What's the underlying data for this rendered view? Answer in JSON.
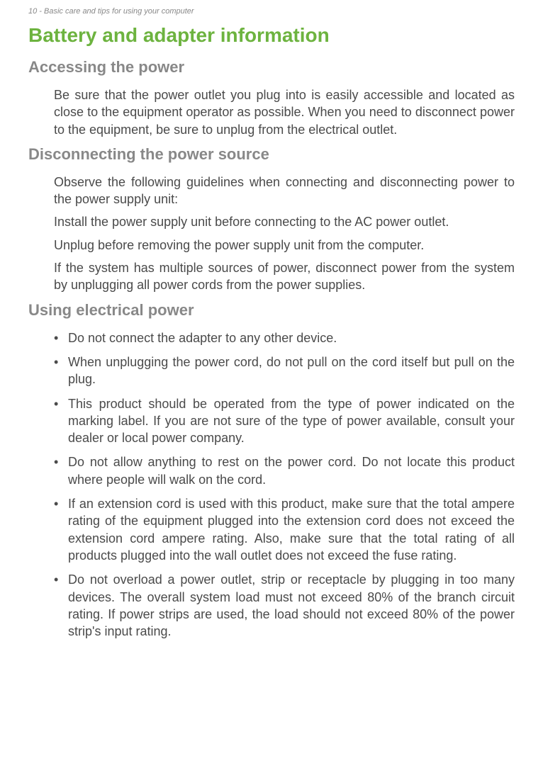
{
  "header": {
    "page_number": "10",
    "section_name": "Basic care and tips for using your computer"
  },
  "main_title": "Battery and adapter information",
  "sections": [
    {
      "title": "Accessing the power",
      "paragraphs": [
        "Be sure that the power outlet you plug into is easily accessible and located as close to the equipment operator as possible. When you need to disconnect power to the equipment, be sure to unplug from the electrical outlet."
      ]
    },
    {
      "title": "Disconnecting the power source",
      "paragraphs": [
        "Observe the following guidelines when connecting and disconnecting power to the power supply unit:",
        "Install the power supply unit before connecting to the AC power outlet.",
        "Unplug before removing the power supply unit from the computer.",
        "If the system has multiple sources of power, disconnect power from the system by unplugging all power cords from the power supplies."
      ]
    },
    {
      "title": "Using electrical power",
      "bullets": [
        "Do not connect the adapter to any other device.",
        "When unplugging the power cord, do not pull on the cord itself but pull on the plug.",
        "This product should be operated from the type of power indicated on the marking label. If you are not sure of the type of power available, consult your dealer or local power company.",
        "Do not allow anything to rest on the power cord. Do not locate this product where people will walk on the cord.",
        "If an extension cord is used with this product, make sure that the total ampere rating of the equipment plugged into the extension cord does not exceed the extension cord ampere rating. Also, make sure that the total rating of all products plugged into the wall outlet does not exceed the fuse rating.",
        "Do not overload a power outlet, strip or receptacle by plugging in too many devices. The overall system load must not exceed 80% of the branch circuit rating. If power strips are used, the load should not exceed 80% of the power strip's input rating."
      ]
    }
  ],
  "colors": {
    "title_green": "#6db33f",
    "heading_gray": "#888888",
    "body_text": "#4a4a4a",
    "background": "#ffffff"
  },
  "typography": {
    "header_line_size": 11,
    "main_title_size": 28,
    "section_title_size": 22,
    "body_size": 18
  }
}
